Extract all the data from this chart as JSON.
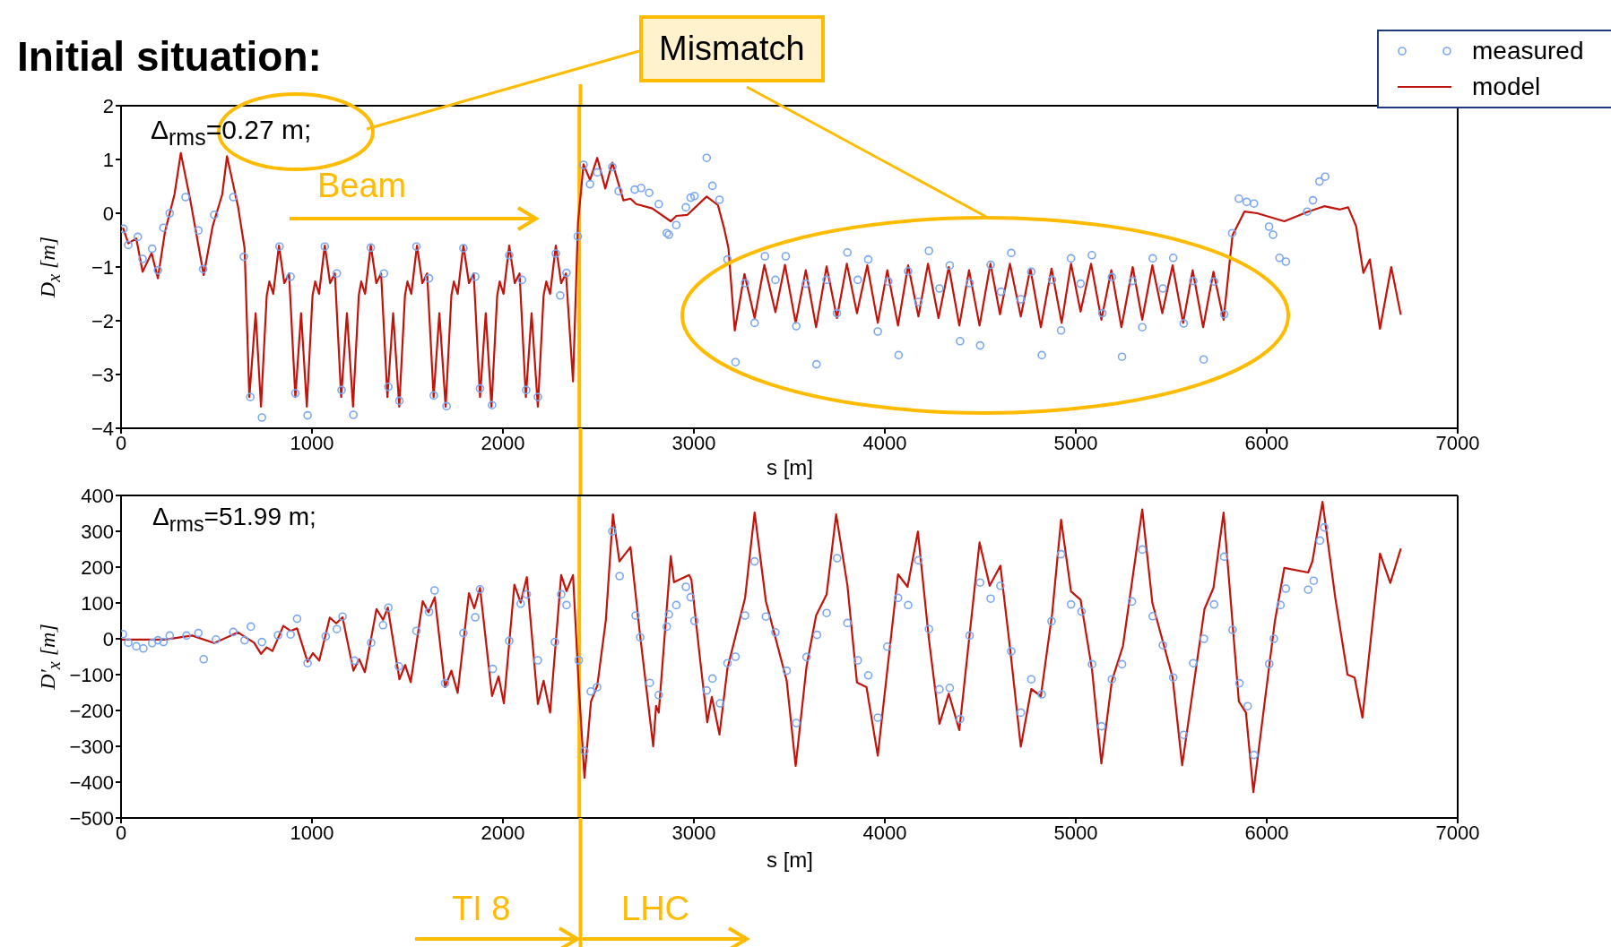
{
  "chart_data": [
    {
      "type": "line",
      "title": "Initial situation:",
      "xlabel": "s [m]",
      "ylabel": "D$_{x}$ [m]",
      "xlim": [
        0,
        7000
      ],
      "xticks": [
        0,
        1000,
        2000,
        3000,
        4000,
        5000,
        6000,
        7000
      ],
      "ylim": [
        -4,
        2
      ],
      "yticks": [
        -4,
        -3,
        -2,
        -1,
        0,
        1,
        2
      ],
      "legend": "top right",
      "annotations": [
        "Δ$_{rms}$=0.27 m;",
        "Beam",
        "Mismatch"
      ],
      "ref_lines": [
        {
          "axis": "x",
          "value": 2400,
          "color": "#ffbb00"
        }
      ],
      "series": [
        {
          "name": "measured",
          "type": "scatter",
          "marker": "circle",
          "color": "#7aa7f0",
          "x": [
            13,
            38,
            88,
            113,
            163,
            193,
            222,
            255,
            338,
            405,
            430,
            488,
            588,
            643,
            677,
            738,
            830,
            888,
            913,
            977,
            1067,
            1130,
            1155,
            1217,
            1308,
            1377,
            1400,
            1458,
            1547,
            1613,
            1638,
            1705,
            1793,
            1855,
            1880,
            1943,
            2033,
            2100,
            2122,
            2183,
            2277,
            2300,
            2333,
            2392,
            2422,
            2456,
            2494,
            2573,
            2606,
            2690,
            2724,
            2766,
            2816,
            2858,
            2869,
            2908,
            2958,
            2983,
            3003,
            3067,
            3097,
            3134,
            3176,
            3218,
            3268,
            3318,
            3372,
            3427,
            3481,
            3536,
            3586,
            3642,
            3695,
            3749,
            3804,
            3858,
            3913,
            3963,
            4018,
            4072,
            4122,
            4176,
            4231,
            4286,
            4340,
            4394,
            4444,
            4499,
            4554,
            4608,
            4662,
            4712,
            4767,
            4822,
            4876,
            4923,
            4975,
            5025,
            5084,
            5139,
            5189,
            5242,
            5298,
            5348,
            5403,
            5456,
            5510,
            5565,
            5615,
            5670,
            5724,
            5777,
            5819,
            5854,
            5895,
            5933,
            6012,
            6033,
            6067,
            6100,
            6212,
            6242,
            6276,
            6306
          ],
          "values": [
            -0.29,
            -0.59,
            -0.44,
            -0.85,
            -0.66,
            -1.06,
            -0.27,
            0.0,
            0.3,
            -0.32,
            -1.04,
            -0.03,
            0.3,
            -0.81,
            -3.42,
            -3.8,
            -0.62,
            -1.18,
            -3.35,
            -3.76,
            -0.62,
            -1.12,
            -3.29,
            -3.75,
            -0.64,
            -1.12,
            -3.23,
            -3.49,
            -0.62,
            -1.21,
            -3.39,
            -3.59,
            -0.65,
            -1.18,
            -3.26,
            -3.57,
            -0.78,
            -1.24,
            -3.29,
            -3.42,
            -0.75,
            -1.53,
            -1.11,
            -0.43,
            0.9,
            0.54,
            0.76,
            0.86,
            0.41,
            0.44,
            0.47,
            0.38,
            0.17,
            -0.37,
            -0.4,
            -0.22,
            0.11,
            0.29,
            0.32,
            1.03,
            0.51,
            0.25,
            -0.86,
            -2.77,
            -1.3,
            -2.04,
            -0.8,
            -1.24,
            -0.8,
            -2.1,
            -1.31,
            -2.81,
            -1.24,
            -1.86,
            -0.73,
            -1.24,
            -0.86,
            -2.2,
            -1.27,
            -2.64,
            -1.08,
            -1.65,
            -0.7,
            -1.4,
            -0.97,
            -2.38,
            -1.3,
            -2.46,
            -0.96,
            -1.46,
            -0.74,
            -1.6,
            -1.09,
            -2.64,
            -1.24,
            -2.18,
            -0.84,
            -1.31,
            -0.78,
            -1.86,
            -1.19,
            -2.67,
            -1.26,
            -2.12,
            -0.84,
            -1.4,
            -0.83,
            -2.05,
            -1.26,
            -2.72,
            -1.27,
            -1.88,
            -0.37,
            0.27,
            0.21,
            0.18,
            -0.25,
            -0.4,
            -0.83,
            -0.9,
            0.03,
            0.24,
            0.59,
            0.68
          ]
        },
        {
          "name": "model",
          "type": "line",
          "marker": "none",
          "color": "#c0140c",
          "x": [
            10,
            38,
            80,
            113,
            160,
            193,
            230,
            280,
            313,
            363,
            433,
            480,
            530,
            555,
            613,
            647,
            672,
            705,
            733,
            763,
            777,
            797,
            827,
            855,
            880,
            913,
            943,
            973,
            1003,
            1017,
            1037,
            1067,
            1095,
            1120,
            1153,
            1183,
            1215,
            1245,
            1258,
            1278,
            1308,
            1337,
            1362,
            1395,
            1425,
            1457,
            1487,
            1500,
            1520,
            1550,
            1578,
            1603,
            1637,
            1667,
            1700,
            1730,
            1743,
            1763,
            1793,
            1822,
            1847,
            1880,
            1910,
            1940,
            1970,
            1983,
            2003,
            2033,
            2062,
            2087,
            2120,
            2150,
            2183,
            2213,
            2227,
            2247,
            2277,
            2305,
            2330,
            2367,
            2393,
            2422,
            2456,
            2494,
            2536,
            2573,
            2631,
            2668,
            2698,
            2782,
            2879,
            2908,
            2966,
            3067,
            3126,
            3159,
            3181,
            3214,
            3265,
            3318,
            3369,
            3427,
            3477,
            3533,
            3586,
            3640,
            3695,
            3749,
            3801,
            3854,
            3908,
            3963,
            4013,
            4069,
            4122,
            4176,
            4226,
            4281,
            4335,
            4390,
            4441,
            4496,
            4553,
            4603,
            4655,
            4712,
            4762,
            4817,
            4873,
            4926,
            4975,
            5025,
            5080,
            5134,
            5186,
            5239,
            5298,
            5348,
            5401,
            5453,
            5507,
            5562,
            5612,
            5667,
            5721,
            5774,
            5808,
            5821,
            5883,
            5950,
            6092,
            6217,
            6301,
            6384,
            6426,
            6468,
            6506,
            6540,
            6593,
            6652,
            6702
          ],
          "values": [
            -0.27,
            -0.56,
            -0.47,
            -1.09,
            -0.74,
            -1.21,
            -0.35,
            0.35,
            1.12,
            0.24,
            -1.15,
            -0.24,
            0.35,
            1.06,
            0.12,
            -0.65,
            -3.42,
            -1.86,
            -3.6,
            -1.53,
            -1.27,
            -1.5,
            -0.6,
            -1.3,
            -1.12,
            -3.42,
            -1.86,
            -3.6,
            -1.53,
            -1.27,
            -1.5,
            -0.6,
            -1.3,
            -1.12,
            -3.42,
            -1.86,
            -3.6,
            -1.53,
            -1.27,
            -1.5,
            -0.6,
            -1.3,
            -1.12,
            -3.42,
            -1.86,
            -3.6,
            -1.53,
            -1.27,
            -1.5,
            -0.6,
            -1.3,
            -1.12,
            -3.42,
            -1.86,
            -3.6,
            -1.53,
            -1.27,
            -1.5,
            -0.6,
            -1.3,
            -1.12,
            -3.42,
            -1.86,
            -3.6,
            -1.53,
            -1.27,
            -1.5,
            -0.6,
            -1.3,
            -1.12,
            -3.42,
            -1.86,
            -3.6,
            -1.53,
            -1.27,
            -1.5,
            -0.6,
            -1.3,
            -1.12,
            -3.13,
            -0.18,
            0.91,
            0.62,
            1.03,
            0.46,
            0.94,
            0.24,
            0.27,
            0.17,
            0.09,
            -0.15,
            -0.05,
            -0.03,
            0.31,
            0.15,
            -0.29,
            -0.65,
            -2.18,
            -1.13,
            -1.95,
            -0.96,
            -1.84,
            -0.96,
            -2.04,
            -1.06,
            -2.12,
            -0.99,
            -1.95,
            -0.94,
            -1.86,
            -0.97,
            -2.04,
            -1.06,
            -2.09,
            -0.97,
            -1.92,
            -0.94,
            -1.95,
            -1.0,
            -2.09,
            -1.06,
            -2.09,
            -0.94,
            -1.88,
            -0.94,
            -1.92,
            -1.03,
            -2.12,
            -1.03,
            -2.04,
            -0.94,
            -1.83,
            -0.94,
            -1.98,
            -1.06,
            -2.12,
            -1.0,
            -1.98,
            -0.97,
            -1.86,
            -0.97,
            -2.04,
            -1.06,
            -2.12,
            -1.09,
            -1.98,
            -0.83,
            -0.41,
            0.03,
            0.0,
            -0.15,
            0.03,
            0.13,
            0.07,
            0.11,
            -0.24,
            -1.11,
            -0.86,
            -2.15,
            -1.0,
            -1.89
          ]
        }
      ]
    },
    {
      "type": "line",
      "xlabel": "s [m]",
      "ylabel": "D′$_{x}$ [m]",
      "xlim": [
        0,
        7000
      ],
      "xticks": [
        0,
        1000,
        2000,
        3000,
        4000,
        5000,
        6000,
        7000
      ],
      "ylim": [
        -500,
        400
      ],
      "yticks": [
        -500,
        -400,
        -300,
        -200,
        -100,
        0,
        100,
        200,
        300,
        400
      ],
      "annotations": [
        "Δ$_{rms}$=51.99 m;",
        "TI 8",
        "LHC"
      ],
      "ref_lines": [
        {
          "axis": "x",
          "value": 2400,
          "color": "#ffbb00"
        }
      ],
      "series": [
        {
          "type": "scatter",
          "marker": "circle",
          "color": "#7aa7f0",
          "x": [
            10,
            38,
            80,
            117,
            163,
            193,
            222,
            255,
            343,
            405,
            433,
            497,
            588,
            647,
            680,
            738,
            822,
            888,
            922,
            977,
            1072,
            1130,
            1160,
            1222,
            1310,
            1372,
            1400,
            1455,
            1547,
            1613,
            1642,
            1697,
            1793,
            1855,
            1880,
            1947,
            2033,
            2093,
            2125,
            2183,
            2272,
            2305,
            2333,
            2397,
            2427,
            2460,
            2493,
            2573,
            2611,
            2695,
            2719,
            2769,
            2816,
            2858,
            2869,
            2908,
            2958,
            2983,
            3003,
            3067,
            3097,
            3137,
            3176,
            3218,
            3268,
            3318,
            3377,
            3427,
            3486,
            3536,
            3590,
            3645,
            3695,
            3750,
            3804,
            3858,
            3913,
            3963,
            4013,
            4069,
            4122,
            4176,
            4231,
            4286,
            4340,
            4394,
            4444,
            4499,
            4554,
            4605,
            4662,
            4712,
            4767,
            4822,
            4873,
            4923,
            4975,
            5030,
            5085,
            5135,
            5189,
            5242,
            5294,
            5348,
            5403,
            5456,
            5510,
            5565,
            5615,
            5671,
            5724,
            5777,
            5821,
            5857,
            5900,
            5933,
            6013,
            6037,
            6072,
            6100,
            6217,
            6246,
            6279,
            6301
          ],
          "values": [
            13,
            -11,
            -21,
            -27,
            -12,
            -4,
            -9,
            9,
            9,
            16,
            -57,
            -2,
            19,
            -4,
            34,
            -9,
            10,
            12,
            56,
            -68,
            7,
            27,
            62,
            -61,
            -11,
            38,
            87,
            -77,
            22,
            75,
            135,
            -124,
            16,
            60,
            138,
            -84,
            -6,
            98,
            124,
            -60,
            -9,
            124,
            94,
            -60,
            -313,
            -147,
            -135,
            300,
            175,
            65,
            4,
            -123,
            -157,
            34,
            68,
            94,
            145,
            116,
            50,
            -144,
            -111,
            -180,
            -68,
            -50,
            65,
            216,
            62,
            18,
            -89,
            -235,
            -51,
            11,
            72,
            225,
            44,
            -60,
            -102,
            -220,
            -22,
            114,
            94,
            219,
            27,
            -141,
            -137,
            -224,
            9,
            157,
            112,
            148,
            -35,
            -206,
            -113,
            -155,
            49,
            236,
            96,
            76,
            -71,
            -244,
            -113,
            -71,
            104,
            249,
            63,
            -18,
            -108,
            -268,
            -68,
            0,
            96,
            229,
            25,
            -124,
            -188,
            -324,
            -70,
            0,
            94,
            140,
            137,
            162,
            274,
            311
          ]
        },
        {
          "type": "line",
          "marker": "none",
          "color": "#c0140c",
          "x": [
            5,
            230,
            372,
            488,
            613,
            697,
            733,
            763,
            793,
            850,
            888,
            922,
            977,
            1005,
            1038,
            1093,
            1127,
            1160,
            1217,
            1247,
            1277,
            1338,
            1372,
            1397,
            1458,
            1488,
            1517,
            1580,
            1610,
            1643,
            1697,
            1730,
            1763,
            1822,
            1850,
            1880,
            1943,
            1977,
            2005,
            2060,
            2093,
            2125,
            2183,
            2213,
            2247,
            2305,
            2333,
            2367,
            2397,
            2427,
            2461,
            2494,
            2539,
            2576,
            2610,
            2668,
            2715,
            2787,
            2802,
            2816,
            2879,
            2896,
            2975,
            2987,
            3030,
            3070,
            3094,
            3134,
            3176,
            3268,
            3318,
            3377,
            3486,
            3533,
            3590,
            3640,
            3695,
            3745,
            3804,
            3854,
            3904,
            3963,
            4069,
            4119,
            4173,
            4231,
            4286,
            4335,
            4390,
            4496,
            4549,
            4605,
            4658,
            4712,
            4767,
            4817,
            4876,
            4923,
            4975,
            5025,
            5085,
            5134,
            5189,
            5247,
            5348,
            5401,
            5507,
            5557,
            5674,
            5721,
            5774,
            5854,
            5891,
            5930,
            6042,
            6092,
            6217,
            6239,
            6292,
            6359,
            6423,
            6460,
            6501,
            6593,
            6647,
            6702
          ],
          "values": [
            -2,
            -2,
            9,
            -12,
            18,
            -11,
            -42,
            -24,
            -34,
            36,
            22,
            29,
            -64,
            -40,
            -61,
            59,
            43,
            60,
            -89,
            -57,
            -93,
            83,
            53,
            87,
            -113,
            -73,
            -121,
            105,
            74,
            116,
            -135,
            -89,
            -151,
            127,
            85,
            142,
            -160,
            -105,
            -180,
            151,
            101,
            172,
            -182,
            -117,
            -206,
            178,
            133,
            178,
            -131,
            -388,
            -175,
            -131,
            52,
            347,
            216,
            256,
            25,
            -300,
            -187,
            -206,
            231,
            158,
            178,
            165,
            -46,
            -233,
            -162,
            -267,
            -82,
            114,
            352,
            105,
            -117,
            -355,
            -77,
            65,
            124,
            347,
            149,
            -122,
            -135,
            -326,
            180,
            145,
            299,
            -2,
            -237,
            -153,
            -255,
            269,
            148,
            204,
            -37,
            -301,
            -140,
            -160,
            69,
            332,
            132,
            109,
            -86,
            -348,
            -117,
            -20,
            361,
            100,
            -108,
            -353,
            83,
            142,
            352,
            -175,
            -206,
            -428,
            47,
            198,
            185,
            216,
            382,
            114,
            -100,
            -108,
            -220,
            238,
            156,
            252
          ]
        }
      ]
    }
  ]
}
